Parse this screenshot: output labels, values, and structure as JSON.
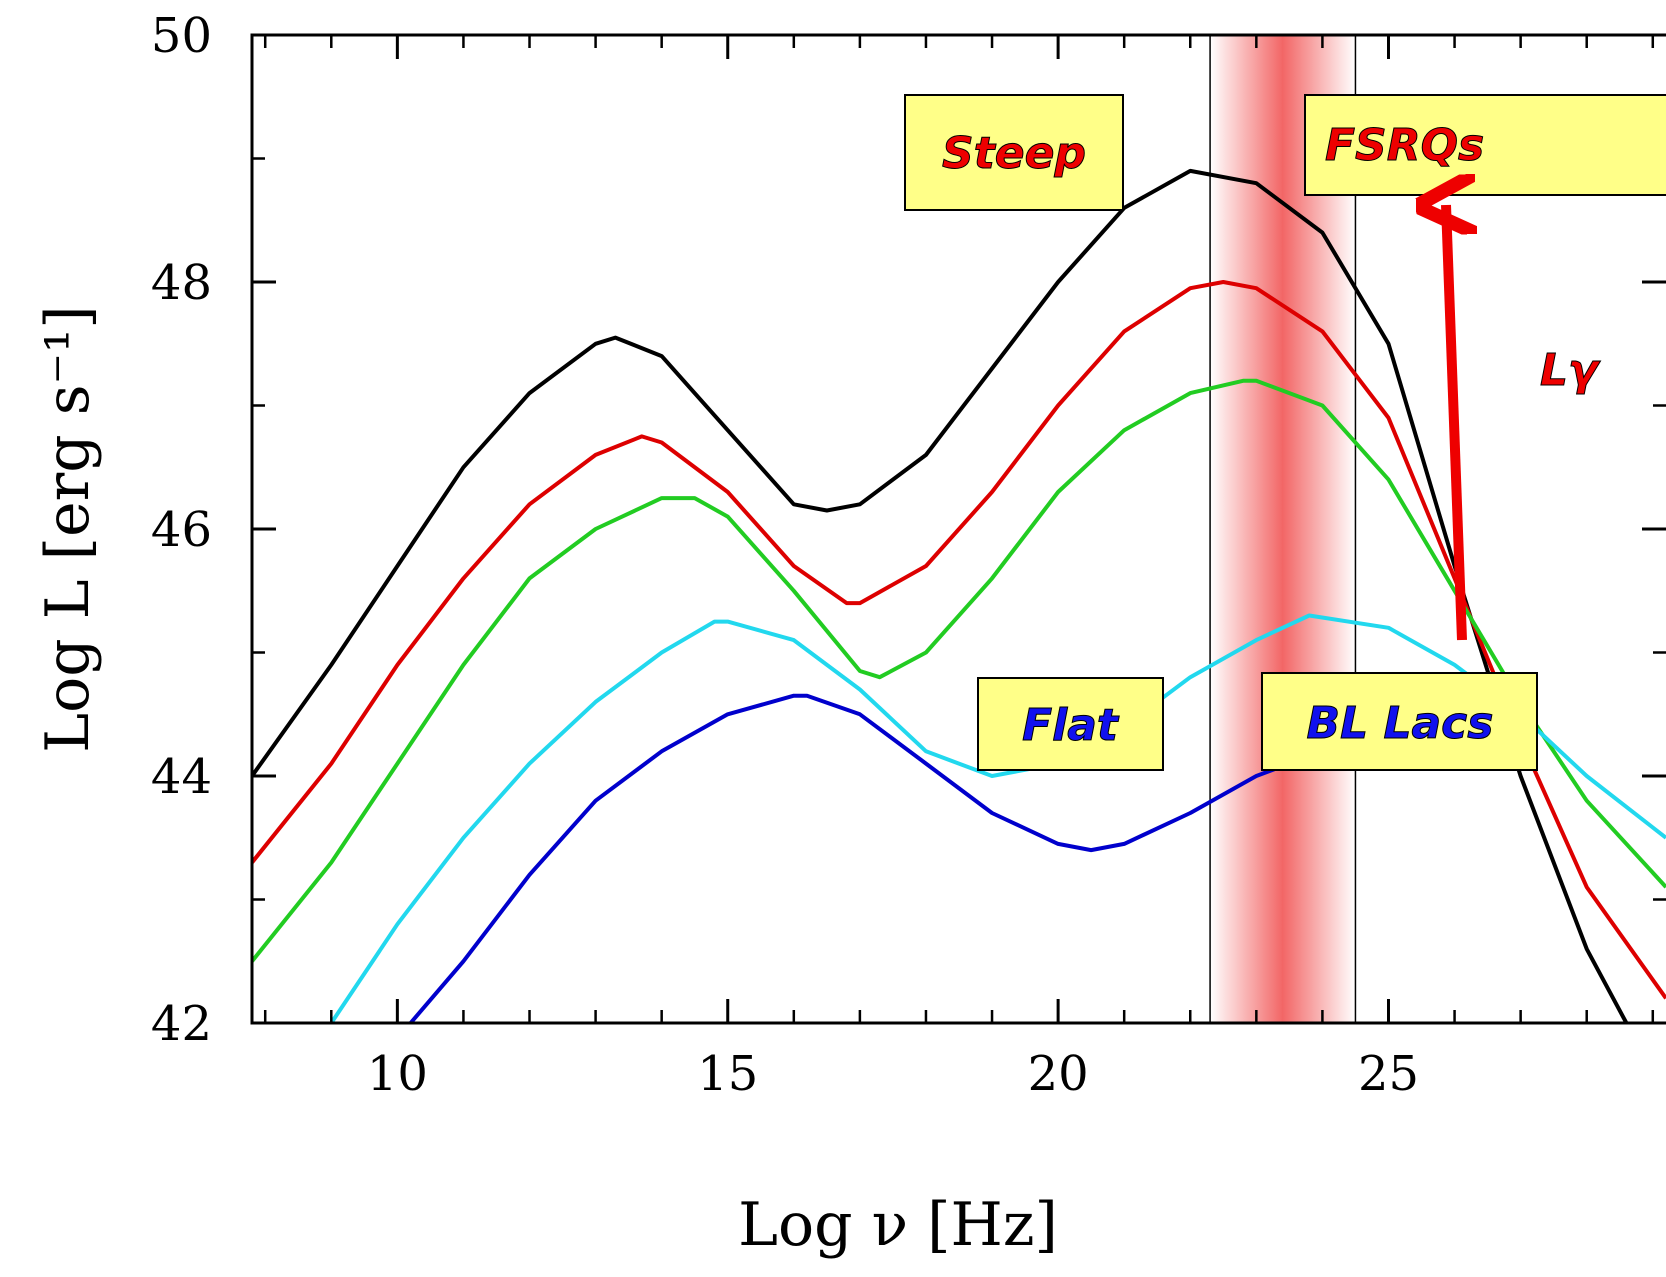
{
  "chart_data": {
    "type": "line",
    "xlabel": "Log ν [Hz]",
    "ylabel": "Log L [erg s⁻¹]",
    "xlim": [
      7.8,
      29.2
    ],
    "ylim": [
      42,
      50
    ],
    "xticks": [
      10,
      15,
      20,
      25
    ],
    "yticks": [
      42,
      44,
      46,
      48,
      50
    ],
    "xminorticks": [
      8,
      9,
      11,
      12,
      13,
      14,
      16,
      17,
      18,
      19,
      21,
      22,
      23,
      24,
      26,
      27,
      28,
      29
    ],
    "yminorticks": [
      43,
      45,
      47,
      49
    ],
    "band": {
      "xlim": [
        22.3,
        24.5
      ],
      "color": "#ee3333"
    },
    "annotations": [
      "Steep",
      "FSRQs",
      "Flat",
      "BL Lacs",
      "Lγ"
    ],
    "series": [
      {
        "color": "#000000",
        "x": [
          7.8,
          9,
          10,
          11,
          12,
          13,
          13.3,
          14,
          15,
          16,
          16.5,
          17,
          18,
          19,
          20,
          21,
          22,
          23,
          24,
          25,
          26,
          27,
          28,
          28.6
        ],
        "values": [
          44.0,
          44.9,
          45.7,
          46.5,
          47.1,
          47.5,
          47.55,
          47.4,
          46.8,
          46.2,
          46.15,
          46.2,
          46.6,
          47.3,
          48.0,
          48.6,
          48.9,
          48.8,
          48.4,
          47.5,
          45.7,
          44.0,
          42.6,
          42.0
        ]
      },
      {
        "color": "#dd0000",
        "x": [
          7.8,
          9,
          10,
          11,
          12,
          13,
          13.7,
          14,
          15,
          16,
          16.8,
          17,
          18,
          19,
          20,
          21,
          22,
          22.5,
          23,
          24,
          25,
          26,
          27,
          28,
          29.2
        ],
        "values": [
          43.3,
          44.1,
          44.9,
          45.6,
          46.2,
          46.6,
          46.75,
          46.7,
          46.3,
          45.7,
          45.4,
          45.4,
          45.7,
          46.3,
          47.0,
          47.6,
          47.95,
          48.0,
          47.95,
          47.6,
          46.9,
          45.6,
          44.3,
          43.1,
          42.2
        ]
      },
      {
        "color": "#22cc22",
        "x": [
          7.8,
          9,
          10,
          11,
          12,
          13,
          14,
          14.5,
          15,
          16,
          17,
          17.3,
          18,
          19,
          20,
          21,
          22,
          22.8,
          23,
          24,
          25,
          26,
          27,
          28,
          29.2
        ],
        "values": [
          42.5,
          43.3,
          44.1,
          44.9,
          45.6,
          46.0,
          46.25,
          46.25,
          46.1,
          45.5,
          44.85,
          44.8,
          45.0,
          45.6,
          46.3,
          46.8,
          47.1,
          47.2,
          47.2,
          47.0,
          46.4,
          45.5,
          44.6,
          43.8,
          43.1
        ]
      },
      {
        "color": "#22d8ee",
        "x": [
          9,
          10,
          11,
          12,
          13,
          14,
          14.8,
          15,
          16,
          17,
          18,
          19,
          20,
          21,
          22,
          23,
          23.8,
          25,
          26,
          27,
          28,
          29.2
        ],
        "values": [
          42.0,
          42.8,
          43.5,
          44.1,
          44.6,
          45.0,
          45.25,
          45.25,
          45.1,
          44.7,
          44.2,
          44.0,
          44.1,
          44.4,
          44.8,
          45.1,
          45.3,
          45.2,
          44.9,
          44.5,
          44.0,
          43.5
        ]
      },
      {
        "color": "#0000cc",
        "x": [
          10.2,
          11,
          12,
          13,
          14,
          15,
          16,
          16.2,
          17,
          18,
          19,
          20,
          20.5,
          21,
          22,
          23,
          24
        ],
        "values": [
          42.0,
          42.5,
          43.2,
          43.8,
          44.2,
          44.5,
          44.65,
          44.65,
          44.5,
          44.1,
          43.7,
          43.45,
          43.4,
          43.45,
          43.7,
          44.0,
          44.2
        ]
      }
    ]
  }
}
